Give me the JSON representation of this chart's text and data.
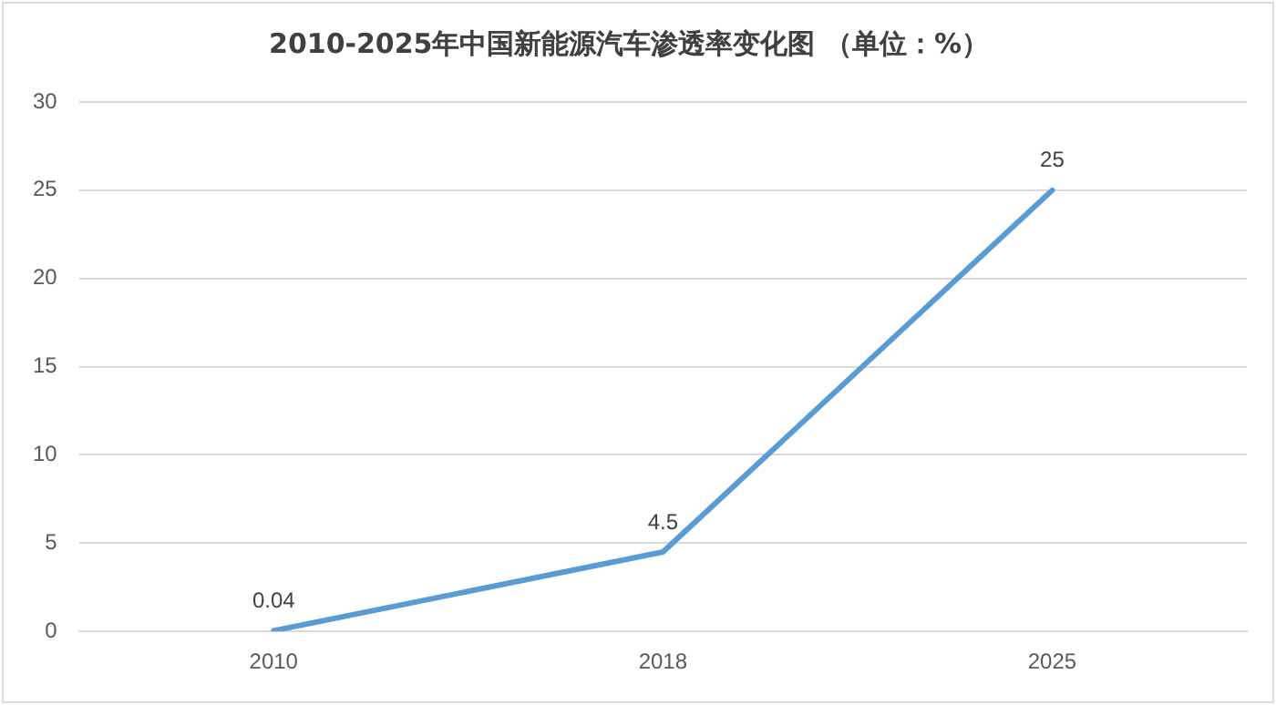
{
  "chart_data": {
    "type": "line",
    "title": "2010-2025年中国新能源汽车渗透率变化图 （单位：%）",
    "categories": [
      "2010",
      "2018",
      "2025"
    ],
    "series": [
      {
        "color": "#5b9bd5",
        "values": [
          0.04,
          4.5,
          25
        ]
      }
    ],
    "ylim": [
      0,
      30
    ],
    "yticks": [
      0,
      5,
      10,
      15,
      20,
      25,
      30
    ],
    "grid": "y",
    "legend": false,
    "marker": "none",
    "line_style": "solid",
    "data_labels": true
  }
}
